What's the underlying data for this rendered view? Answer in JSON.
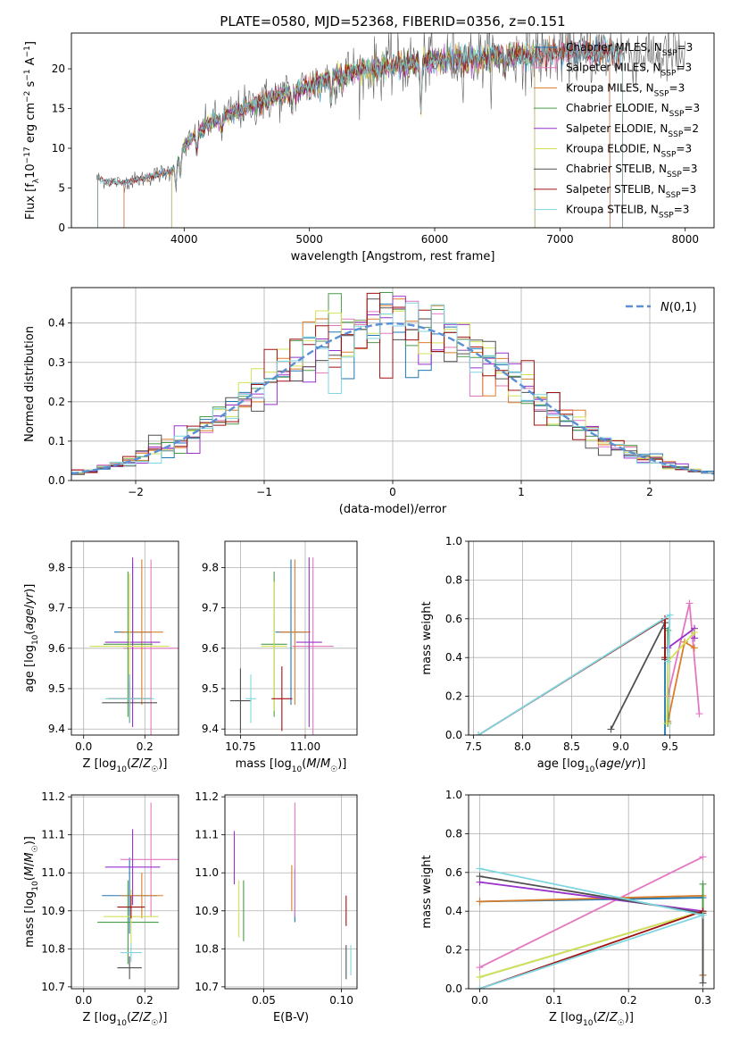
{
  "figure_title": "PLATE=0580, MJD=52368, FIBERID=0356, z=0.151",
  "colors": {
    "Chabrier MILES": "#1f77b4",
    "Salpeter MILES": "#e377c2",
    "Kroupa MILES": "#d97e2a",
    "Chabrier ELODIE": "#4a9a4a",
    "Salpeter ELODIE": "#9932cc",
    "Kroupa ELODIE": "#d4e157",
    "Chabrier STELIB": "#505050",
    "Salpeter STELIB": "#a01010",
    "Kroupa STELIB": "#7fd6e0",
    "gaussian": "#5b8fd6"
  },
  "chart_data": [
    {
      "id": "spectrum",
      "type": "line",
      "xlabel": "wavelength [Angstrom, rest frame]",
      "ylabel": "Flux [fλ10⁻¹⁷ erg cm⁻² s⁻¹ A⁻¹]",
      "xlim": [
        3100,
        8230
      ],
      "ylim": [
        0,
        24.5
      ],
      "xticks": [
        4000,
        5000,
        6000,
        7000,
        8000
      ],
      "yticks": [
        0,
        5,
        10,
        15,
        20
      ],
      "legend": [
        "Chabrier MILES, N_SSP=3",
        "Salpeter MILES, N_SSP=3",
        "Kroupa MILES, N_SSP=3",
        "Chabrier ELODIE, N_SSP=3",
        "Salpeter ELODIE, N_SSP=2",
        "Kroupa ELODIE, N_SSP=3",
        "Chabrier STELIB, N_SSP=3",
        "Salpeter STELIB, N_SSP=3",
        "Kroupa STELIB, N_SSP=3"
      ],
      "legend_position": "right",
      "continuum": [
        [
          3300,
          6.2
        ],
        [
          3500,
          5.6
        ],
        [
          3700,
          6.3
        ],
        [
          3900,
          7.2
        ],
        [
          4000,
          10.2
        ],
        [
          4200,
          13.2
        ],
        [
          4500,
          15.2
        ],
        [
          4800,
          16.8
        ],
        [
          5000,
          17.8
        ],
        [
          5200,
          19.2
        ],
        [
          5500,
          20.0
        ],
        [
          6000,
          21.0
        ],
        [
          6500,
          21.5
        ],
        [
          7000,
          22.0
        ],
        [
          7400,
          22.3
        ],
        [
          7700,
          21.8
        ],
        [
          8000,
          21.5
        ]
      ],
      "model_range": [
        3500,
        7400
      ],
      "elodie_range": [
        3900,
        6800
      ],
      "grid": false
    },
    {
      "id": "residuals",
      "type": "histogram",
      "xlabel": "(data-model)/error",
      "ylabel": "Normed distribution",
      "xlim": [
        -2.5,
        2.5
      ],
      "ylim": [
        0,
        0.49
      ],
      "xticks": [
        -2,
        -1,
        0,
        1,
        2
      ],
      "yticks": [
        0,
        0.1,
        0.2,
        0.3,
        0.4
      ],
      "bin_width": 0.1,
      "legend": [
        "N(0,1)"
      ],
      "legend_position": "top-right",
      "grid": true
    },
    {
      "id": "age_vs_Z",
      "type": "errorbar",
      "xlabel": "Z [log10(Z/Z☉)]",
      "ylabel": "age [log10(age/yr)]",
      "xlim": [
        -0.04,
        0.31
      ],
      "ylim": [
        9.385,
        9.865
      ],
      "xticks": [
        0.0,
        0.2
      ],
      "yticks": [
        9.4,
        9.5,
        9.6,
        9.7,
        9.8
      ],
      "points": [
        {
          "s": "Chabrier MILES",
          "x": 0.16,
          "y": 9.64,
          "xe": 0.06,
          "ye": 0.17
        },
        {
          "s": "Salpeter MILES",
          "x": 0.22,
          "y": 9.6,
          "xe": 0.09,
          "ye": 0.22
        },
        {
          "s": "Kroupa MILES",
          "x": 0.19,
          "y": 9.64,
          "xe": 0.07,
          "ye": 0.18
        },
        {
          "s": "Chabrier ELODIE",
          "x": 0.145,
          "y": 9.61,
          "xe": 0.08,
          "ye": 0.18
        },
        {
          "s": "Salpeter ELODIE",
          "x": 0.16,
          "y": 9.615,
          "xe": 0.09,
          "ye": 0.21
        },
        {
          "s": "Kroupa ELODIE",
          "x": 0.15,
          "y": 9.605,
          "xe": 0.13,
          "ye": 0.18
        },
        {
          "s": "Chabrier STELIB",
          "x": 0.15,
          "y": 9.465,
          "xe": 0.09,
          "ye": 0.05
        },
        {
          "s": "Salpeter STELIB",
          "x": 0.15,
          "y": 9.475,
          "xe": 0.07,
          "ye": 0.06
        },
        {
          "s": "Kroupa STELIB",
          "x": 0.15,
          "y": 9.475,
          "xe": 0.08,
          "ye": 0.06
        }
      ]
    },
    {
      "id": "age_vs_mass",
      "type": "errorbar",
      "xlabel": "mass [log10(M/M☉)]",
      "ylabel": "",
      "xlim": [
        10.69,
        11.2
      ],
      "ylim": [
        9.385,
        9.865
      ],
      "xticks": [
        10.75,
        11.0
      ],
      "yticks": [
        9.4,
        9.5,
        9.6,
        9.7,
        9.8
      ],
      "points": [
        {
          "s": "Chabrier MILES",
          "x": 10.945,
          "y": 9.64,
          "xe": 0.06,
          "ye": 0.18
        },
        {
          "s": "Salpeter MILES",
          "x": 11.03,
          "y": 9.605,
          "xe": 0.08,
          "ye": 0.22
        },
        {
          "s": "Kroupa MILES",
          "x": 10.96,
          "y": 9.64,
          "xe": 0.06,
          "ye": 0.18
        },
        {
          "s": "Chabrier ELODIE",
          "x": 10.88,
          "y": 9.61,
          "xe": 0.05,
          "ye": 0.18
        },
        {
          "s": "Salpeter ELODIE",
          "x": 11.015,
          "y": 9.615,
          "xe": 0.05,
          "ye": 0.21
        },
        {
          "s": "Kroupa ELODIE",
          "x": 10.88,
          "y": 9.605,
          "xe": 0.05,
          "ye": 0.16
        },
        {
          "s": "Chabrier STELIB",
          "x": 10.75,
          "y": 9.47,
          "xe": 0.04,
          "ye": 0.08
        },
        {
          "s": "Salpeter STELIB",
          "x": 10.91,
          "y": 9.475,
          "xe": 0.04,
          "ye": 0.08
        },
        {
          "s": "Kroupa STELIB",
          "x": 10.79,
          "y": 9.475,
          "xe": 0.02,
          "ye": 0.06
        }
      ]
    },
    {
      "id": "weight_vs_age",
      "type": "line",
      "xlabel": "age [log10(age/yr)]",
      "ylabel": "mass weight",
      "xlim": [
        7.45,
        9.95
      ],
      "ylim": [
        0,
        1.0
      ],
      "xticks": [
        7.5,
        8.0,
        8.5,
        9.0,
        9.5
      ],
      "yticks": [
        0,
        0.2,
        0.4,
        0.6,
        0.8,
        1.0
      ],
      "series": [
        {
          "s": "Chabrier MILES",
          "x": [
            9.45,
            9.45,
            9.45
          ],
          "y": [
            0.0,
            0.45,
            0.55
          ]
        },
        {
          "s": "Salpeter MILES",
          "x": [
            9.48,
            9.7,
            9.8
          ],
          "y": [
            0.2,
            0.68,
            0.11
          ]
        },
        {
          "s": "Kroupa MILES",
          "x": [
            9.48,
            9.65,
            9.75
          ],
          "y": [
            0.07,
            0.48,
            0.45
          ]
        },
        {
          "s": "Chabrier ELODIE",
          "x": [
            9.48,
            9.48,
            9.48
          ],
          "y": [
            0.06,
            0.4,
            0.54
          ]
        },
        {
          "s": "Salpeter ELODIE",
          "x": [
            9.48,
            9.75,
            9.75
          ],
          "y": [
            0.45,
            0.55,
            0.5
          ]
        },
        {
          "s": "Kroupa ELODIE",
          "x": [
            9.47,
            9.48,
            9.75
          ],
          "y": [
            0.06,
            0.38,
            0.53
          ]
        },
        {
          "s": "Chabrier STELIB",
          "x": [
            8.9,
            9.45,
            9.45
          ],
          "y": [
            0.03,
            0.58,
            0.39
          ]
        },
        {
          "s": "Salpeter STELIB",
          "x": [
            7.55,
            9.45,
            9.45
          ],
          "y": [
            0.0,
            0.6,
            0.4
          ]
        },
        {
          "s": "Kroupa STELIB",
          "x": [
            7.55,
            9.5,
            9.48
          ],
          "y": [
            0.0,
            0.62,
            0.38
          ]
        }
      ]
    },
    {
      "id": "mass_vs_Z",
      "type": "errorbar",
      "xlabel": "Z [log10(Z/Z☉)]",
      "ylabel": "mass [log10(M/M☉)]",
      "xlim": [
        -0.04,
        0.31
      ],
      "ylim": [
        10.695,
        11.205
      ],
      "xticks": [
        0.0,
        0.2
      ],
      "yticks": [
        10.7,
        10.8,
        10.9,
        11.0,
        11.1,
        11.2
      ],
      "points": [
        {
          "s": "Chabrier MILES",
          "x": 0.15,
          "y": 10.94,
          "xe": 0.09,
          "ye": 0.1
        },
        {
          "s": "Salpeter MILES",
          "x": 0.22,
          "y": 11.035,
          "xe": 0.1,
          "ye": 0.15
        },
        {
          "s": "Kroupa MILES",
          "x": 0.19,
          "y": 10.94,
          "xe": 0.07,
          "ye": 0.06
        },
        {
          "s": "Chabrier ELODIE",
          "x": 0.145,
          "y": 10.87,
          "xe": 0.1,
          "ye": 0.11
        },
        {
          "s": "Salpeter ELODIE",
          "x": 0.16,
          "y": 11.015,
          "xe": 0.09,
          "ye": 0.1
        },
        {
          "s": "Kroupa ELODIE",
          "x": 0.155,
          "y": 10.885,
          "xe": 0.09,
          "ye": 0.07
        },
        {
          "s": "Chabrier STELIB",
          "x": 0.15,
          "y": 10.75,
          "xe": 0.04,
          "ye": 0.03
        },
        {
          "s": "Salpeter STELIB",
          "x": 0.155,
          "y": 10.91,
          "xe": 0.045,
          "ye": 0.03
        },
        {
          "s": "Kroupa STELIB",
          "x": 0.155,
          "y": 10.79,
          "xe": 0.035,
          "ye": 0.025
        }
      ]
    },
    {
      "id": "mass_vs_EBV",
      "type": "errorbar",
      "xlabel": "E(B-V)",
      "ylabel": "",
      "xlim": [
        0.025,
        0.11
      ],
      "ylim": [
        10.695,
        11.205
      ],
      "xticks": [
        0.05,
        0.1
      ],
      "yticks": [
        10.7,
        10.8,
        10.9,
        11.0,
        11.1,
        11.2
      ],
      "points": [
        {
          "s": "Chabrier MILES",
          "x": 0.07,
          "y": 10.94,
          "xe": 0,
          "ye": 0.07
        },
        {
          "s": "Salpeter MILES",
          "x": 0.07,
          "y": 11.035,
          "xe": 0,
          "ye": 0.15
        },
        {
          "s": "Kroupa MILES",
          "x": 0.068,
          "y": 10.96,
          "xe": 0,
          "ye": 0.06
        },
        {
          "s": "Chabrier ELODIE",
          "x": 0.037,
          "y": 10.9,
          "xe": 0,
          "ye": 0.08
        },
        {
          "s": "Salpeter ELODIE",
          "x": 0.031,
          "y": 11.04,
          "xe": 0,
          "ye": 0.07
        },
        {
          "s": "Kroupa ELODIE",
          "x": 0.034,
          "y": 10.905,
          "xe": 0,
          "ye": 0.075
        },
        {
          "s": "Chabrier STELIB",
          "x": 0.103,
          "y": 10.765,
          "xe": 0,
          "ye": 0.045
        },
        {
          "s": "Salpeter STELIB",
          "x": 0.103,
          "y": 10.9,
          "xe": 0,
          "ye": 0.04
        },
        {
          "s": "Kroupa STELIB",
          "x": 0.106,
          "y": 10.77,
          "xe": 0,
          "ye": 0.04
        }
      ]
    },
    {
      "id": "weight_vs_Z",
      "type": "line",
      "xlabel": "Z [log10(Z/Z☉)]",
      "ylabel": "mass weight",
      "xlim": [
        -0.015,
        0.315
      ],
      "ylim": [
        0,
        1.0
      ],
      "xticks": [
        0.0,
        0.1,
        0.2,
        0.3
      ],
      "yticks": [
        0,
        0.2,
        0.4,
        0.6,
        0.8,
        1.0
      ],
      "series": [
        {
          "s": "Chabrier MILES",
          "x": [
            0.0,
            0.3,
            0.3
          ],
          "y": [
            0.45,
            0.47,
            0.07
          ]
        },
        {
          "s": "Salpeter MILES",
          "x": [
            0.0,
            0.3
          ],
          "y": [
            0.11,
            0.68
          ]
        },
        {
          "s": "Kroupa MILES",
          "x": [
            0.0,
            0.3,
            0.3
          ],
          "y": [
            0.45,
            0.48,
            0.07
          ]
        },
        {
          "s": "Chabrier ELODIE",
          "x": [
            0.0,
            0.3,
            0.3
          ],
          "y": [
            0.06,
            0.4,
            0.54
          ]
        },
        {
          "s": "Salpeter ELODIE",
          "x": [
            0.0,
            0.3
          ],
          "y": [
            0.55,
            0.4
          ]
        },
        {
          "s": "Kroupa ELODIE",
          "x": [
            0.0,
            0.3
          ],
          "y": [
            0.06,
            0.4
          ]
        },
        {
          "s": "Chabrier STELIB",
          "x": [
            0.0,
            0.3,
            0.3
          ],
          "y": [
            0.58,
            0.39,
            0.03
          ]
        },
        {
          "s": "Salpeter STELIB",
          "x": [
            0.0,
            0.3
          ],
          "y": [
            0.0,
            0.4
          ]
        },
        {
          "s": "Kroupa STELIB",
          "x": [
            0.0,
            0.3,
            0.0
          ],
          "y": [
            0.0,
            0.38,
            0.62
          ]
        }
      ]
    }
  ]
}
